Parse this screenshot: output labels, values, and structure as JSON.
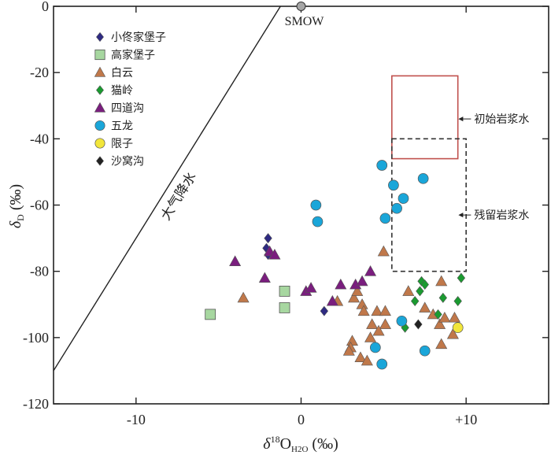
{
  "chart_data": {
    "type": "scatter",
    "xlabel": {
      "delta": "δ",
      "sup": "18",
      "o": "O",
      "sub": "H2O",
      "unit": " (‰)"
    },
    "ylabel": {
      "delta": "δ",
      "sub": "D",
      "unit": " (‰)"
    },
    "xlim": [
      -15,
      15
    ],
    "ylim": [
      -120,
      0
    ],
    "xticks": [
      {
        "v": -10,
        "label": "-10"
      },
      {
        "v": 0,
        "label": "0"
      },
      {
        "v": 10,
        "label": "+10"
      }
    ],
    "yticks": [
      {
        "v": 0,
        "label": "0"
      },
      {
        "v": -20,
        "label": "-20"
      },
      {
        "v": -40,
        "label": "-40"
      },
      {
        "v": -60,
        "label": "-60"
      },
      {
        "v": -80,
        "label": "-80"
      },
      {
        "v": -100,
        "label": "-100"
      },
      {
        "v": -120,
        "label": "-120"
      }
    ],
    "gmwl": {
      "label": "大气降水",
      "x": [
        -15,
        -0.25
      ],
      "y": [
        -110,
        8
      ]
    },
    "smow": {
      "label": "SMOW",
      "x": 0,
      "y": 0
    },
    "boxes": [
      {
        "name": "primary-magmatic-water-box",
        "label": "初始岩浆水",
        "x": [
          5.5,
          9.5
        ],
        "y": [
          -46,
          -21
        ],
        "color": "#c0504d",
        "dash": false,
        "label_x": 10.2,
        "label_y": -34
      },
      {
        "name": "residual-magmatic-water-box",
        "label": "残留岩浆水",
        "x": [
          5.5,
          10
        ],
        "y": [
          -80,
          -40
        ],
        "color": "#333333",
        "dash": true,
        "label_x": 10.2,
        "label_y": -63
      }
    ],
    "series": [
      {
        "name": "小佟家堡子",
        "marker": "diamond",
        "color": "#2e2a82",
        "points": [
          [
            -2,
            -70
          ],
          [
            -2.1,
            -73
          ],
          [
            -2,
            -75
          ],
          [
            1.4,
            -92
          ]
        ]
      },
      {
        "name": "高家堡子",
        "marker": "square",
        "color": "#a7d7a0",
        "points": [
          [
            -5.5,
            -93
          ],
          [
            -1,
            -91
          ],
          [
            -1,
            -86
          ]
        ]
      },
      {
        "name": "白云",
        "marker": "triangle",
        "color": "#c0784a",
        "points": [
          [
            -3.5,
            -88
          ],
          [
            2.2,
            -89
          ],
          [
            3.2,
            -88
          ],
          [
            3.7,
            -90
          ],
          [
            3.8,
            -92
          ],
          [
            4.3,
            -96
          ],
          [
            4.6,
            -92
          ],
          [
            5.1,
            -92
          ],
          [
            5.1,
            -96
          ],
          [
            4.2,
            -100
          ],
          [
            4.7,
            -98
          ],
          [
            3.1,
            -101
          ],
          [
            3,
            -103
          ],
          [
            2.9,
            -104
          ],
          [
            3.6,
            -106
          ],
          [
            4,
            -107
          ],
          [
            5,
            -74
          ],
          [
            7.5,
            -91
          ],
          [
            8,
            -93
          ],
          [
            8.4,
            -96
          ],
          [
            8.7,
            -94
          ],
          [
            9.2,
            -99
          ],
          [
            8.5,
            -102
          ],
          [
            9.3,
            -94
          ],
          [
            6.5,
            -86
          ],
          [
            8.5,
            -83
          ],
          [
            3.4,
            -86
          ]
        ]
      },
      {
        "name": "猫岭",
        "marker": "diamond",
        "color": "#1a9a30",
        "points": [
          [
            7.3,
            -83
          ],
          [
            7.5,
            -84
          ],
          [
            7.2,
            -86
          ],
          [
            6.9,
            -89
          ],
          [
            8.6,
            -88
          ],
          [
            9.7,
            -82
          ],
          [
            9.5,
            -89
          ],
          [
            8.3,
            -93
          ],
          [
            6.3,
            -97
          ]
        ]
      },
      {
        "name": "四道沟",
        "marker": "triangle",
        "color": "#7a1e7e",
        "points": [
          [
            -4,
            -77
          ],
          [
            -2.2,
            -82
          ],
          [
            -1.9,
            -74
          ],
          [
            -1.6,
            -75
          ],
          [
            0.3,
            -86
          ],
          [
            0.6,
            -85
          ],
          [
            1.9,
            -89
          ],
          [
            2.4,
            -84
          ],
          [
            3.3,
            -84
          ],
          [
            3.7,
            -83
          ],
          [
            4.2,
            -80
          ]
        ]
      },
      {
        "name": "五龙",
        "marker": "circle",
        "color": "#1aa6d9",
        "points": [
          [
            4.9,
            -48
          ],
          [
            5.6,
            -54
          ],
          [
            5.8,
            -61
          ],
          [
            6.2,
            -58
          ],
          [
            5.1,
            -64
          ],
          [
            7.4,
            -52
          ],
          [
            0.9,
            -60
          ],
          [
            1,
            -65
          ],
          [
            4.5,
            -103
          ],
          [
            4.9,
            -108
          ],
          [
            6.1,
            -95
          ],
          [
            7.5,
            -104
          ]
        ]
      },
      {
        "name": "限子",
        "marker": "circle",
        "color": "#f2e63a",
        "points": [
          [
            9.5,
            -97
          ]
        ]
      },
      {
        "name": "沙窝沟",
        "marker": "diamond",
        "color": "#222222",
        "points": [
          [
            7.1,
            -96
          ]
        ]
      }
    ]
  }
}
